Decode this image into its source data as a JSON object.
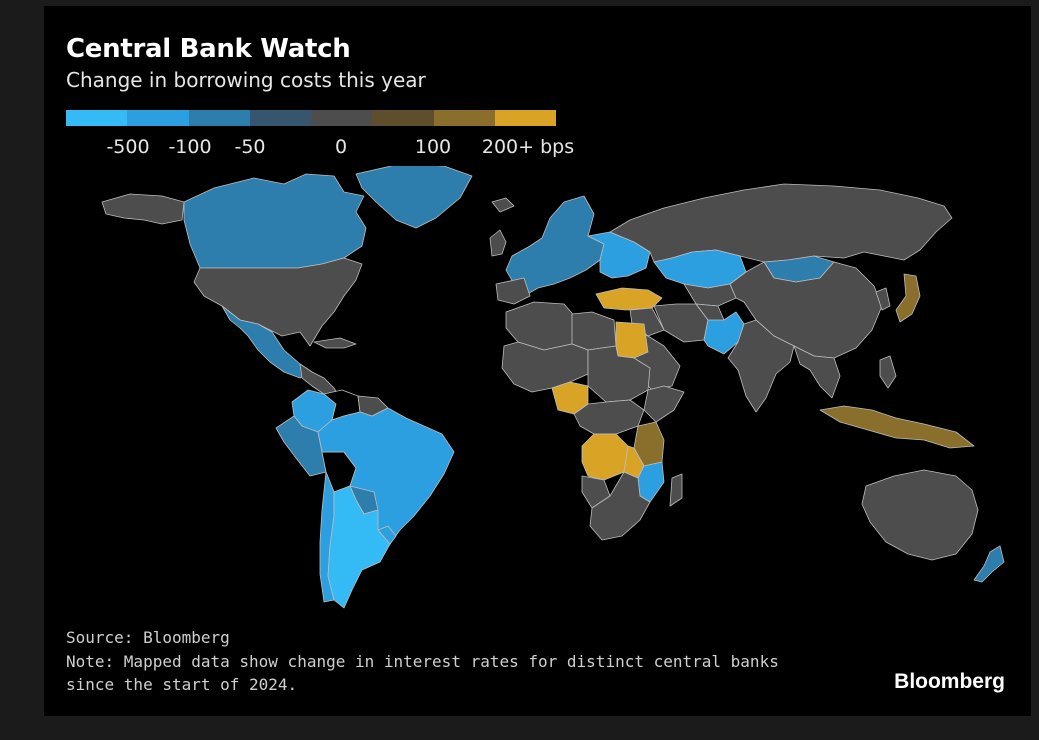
{
  "header": {
    "title": "Central Bank Watch",
    "subtitle": "Change in borrowing costs this year"
  },
  "legend": {
    "colors": [
      "#34baf5",
      "#2c9fe0",
      "#2d7dad",
      "#36566f",
      "#4d4d4d",
      "#5e4e2e",
      "#8a6f2c",
      "#d9a425"
    ],
    "labels": [
      "-500",
      "-100",
      "-50",
      "0",
      "100",
      "200+ bps"
    ]
  },
  "map": {
    "ocean_color": "#000000",
    "border_color": "#bdbdbd",
    "regions": [
      {
        "name": "Canada",
        "category": "-50"
      },
      {
        "name": "Greenland",
        "category": "-50"
      },
      {
        "name": "Alaska",
        "category": "0"
      },
      {
        "name": "United States",
        "category": "0"
      },
      {
        "name": "Mexico",
        "category": "-50"
      },
      {
        "name": "Central America",
        "category": "0"
      },
      {
        "name": "Colombia",
        "category": "-100"
      },
      {
        "name": "Venezuela",
        "category": "no data"
      },
      {
        "name": "Brazil",
        "category": "-100"
      },
      {
        "name": "Peru",
        "category": "-50"
      },
      {
        "name": "Bolivia",
        "category": "no data"
      },
      {
        "name": "Paraguay",
        "category": "-50"
      },
      {
        "name": "Chile",
        "category": "-100"
      },
      {
        "name": "Argentina",
        "category": "-500"
      },
      {
        "name": "Uruguay",
        "category": "-100"
      },
      {
        "name": "Western Europe",
        "category": "-50"
      },
      {
        "name": "Eastern Europe",
        "category": "-100"
      },
      {
        "name": "Russia",
        "category": "0"
      },
      {
        "name": "Turkey",
        "category": "200+"
      },
      {
        "name": "Kazakhstan",
        "category": "-100"
      },
      {
        "name": "Mongolia",
        "category": "-50"
      },
      {
        "name": "Pakistan",
        "category": "-100"
      },
      {
        "name": "Egypt",
        "category": "200+"
      },
      {
        "name": "Nigeria",
        "category": "200+"
      },
      {
        "name": "DR Congo",
        "category": "200+"
      },
      {
        "name": "Malawi",
        "category": "200+"
      },
      {
        "name": "Tanzania",
        "category": "100"
      },
      {
        "name": "Mozambique",
        "category": "-100"
      },
      {
        "name": "South Africa",
        "category": "0"
      },
      {
        "name": "China",
        "category": "0"
      },
      {
        "name": "India",
        "category": "0"
      },
      {
        "name": "Japan",
        "category": "100"
      },
      {
        "name": "Indonesia",
        "category": "100"
      },
      {
        "name": "Australia",
        "category": "0"
      },
      {
        "name": "New Zealand",
        "category": "-50"
      }
    ]
  },
  "footer": {
    "source": "Source: Bloomberg",
    "note_line1": "Note: Mapped data show change in interest rates for distinct central banks",
    "note_line2": "since the start of 2024.",
    "brand": "Bloomberg"
  }
}
